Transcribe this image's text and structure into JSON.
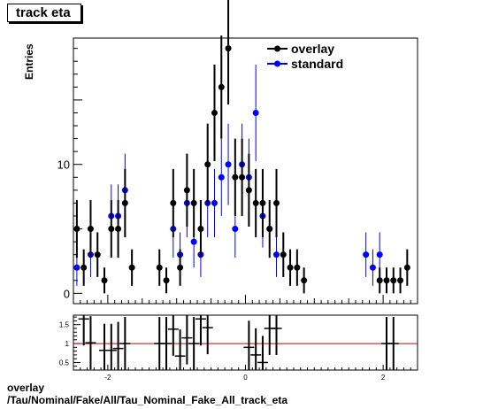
{
  "title": "track eta",
  "footer": {
    "line1": "overlay",
    "line2": "/Tau/Nominal/Fake/All/Tau_Nominal_Fake_All_track_eta"
  },
  "chart_data": [
    {
      "type": "scatter",
      "title": "track eta",
      "xlabel": "",
      "ylabel": "Entries",
      "xlim": [
        -2.5,
        2.5
      ],
      "ylim": [
        -0.8,
        19.8
      ],
      "yticks": [
        0,
        10
      ],
      "xticks": [
        -2,
        0,
        2
      ],
      "legend_position": "top-right",
      "colors": {
        "overlay": "#000000",
        "standard": "#0000ff"
      },
      "series": [
        {
          "name": "overlay",
          "x": [
            -2.45,
            -2.35,
            -2.25,
            -2.15,
            -2.05,
            -1.95,
            -1.85,
            -1.75,
            -1.65,
            -1.25,
            -1.15,
            -1.05,
            -0.95,
            -0.85,
            -0.75,
            -0.65,
            -0.55,
            -0.45,
            -0.35,
            -0.25,
            -0.15,
            -0.05,
            0.05,
            0.15,
            0.25,
            0.35,
            0.45,
            0.55,
            0.65,
            0.75,
            0.85,
            1.95,
            2.05,
            2.15,
            2.25,
            2.35
          ],
          "y": [
            5,
            2,
            5,
            3,
            1,
            5,
            5,
            7,
            2,
            2,
            1,
            7,
            2,
            8,
            7,
            5,
            10,
            14,
            16,
            19,
            9,
            9,
            8,
            7,
            7,
            5,
            7,
            3,
            2,
            2,
            1,
            1,
            1,
            1,
            1,
            2
          ]
        },
        {
          "name": "standard",
          "x": [
            -2.45,
            -2.25,
            -1.95,
            -1.85,
            -1.75,
            -1.05,
            -0.95,
            -0.85,
            -0.75,
            -0.65,
            -0.55,
            -0.45,
            -0.35,
            -0.25,
            -0.15,
            -0.05,
            0.05,
            0.15,
            0.25,
            0.35,
            0.45,
            1.75,
            1.85,
            1.95
          ],
          "y": [
            2,
            3,
            6,
            6,
            8,
            5,
            3,
            7,
            4,
            3,
            7,
            7,
            9,
            10,
            5,
            10,
            9,
            14,
            6,
            5,
            3,
            3,
            2,
            3
          ]
        }
      ]
    },
    {
      "type": "scatter",
      "title": "",
      "xlabel": "",
      "ylabel": "",
      "xlim": [
        -2.5,
        2.5
      ],
      "ylim": [
        0.3,
        1.75
      ],
      "yticks": [
        0.5,
        1,
        1.5
      ],
      "xticks": [
        -2,
        0,
        2
      ],
      "reference_line": 1,
      "colors": {
        "ratio": "#000000",
        "reference": "#cc0000"
      },
      "series": [
        {
          "name": "",
          "x": [
            -2.35,
            -2.25,
            -2.05,
            -1.95,
            -1.85,
            -1.75,
            -1.25,
            -1.15,
            -1.05,
            -0.95,
            -0.85,
            -0.75,
            -0.65,
            -0.55,
            0.05,
            0.15,
            0.25,
            0.35,
            0.45,
            2.05,
            2.15
          ],
          "y": [
            1.65,
            1.02,
            0.82,
            0.82,
            0.87,
            1.0,
            1.0,
            1.0,
            1.38,
            0.67,
            1.15,
            1.0,
            1.65,
            1.42,
            0.9,
            0.7,
            0.5,
            1.4,
            1.4,
            1.0,
            1.0
          ]
        }
      ]
    }
  ]
}
